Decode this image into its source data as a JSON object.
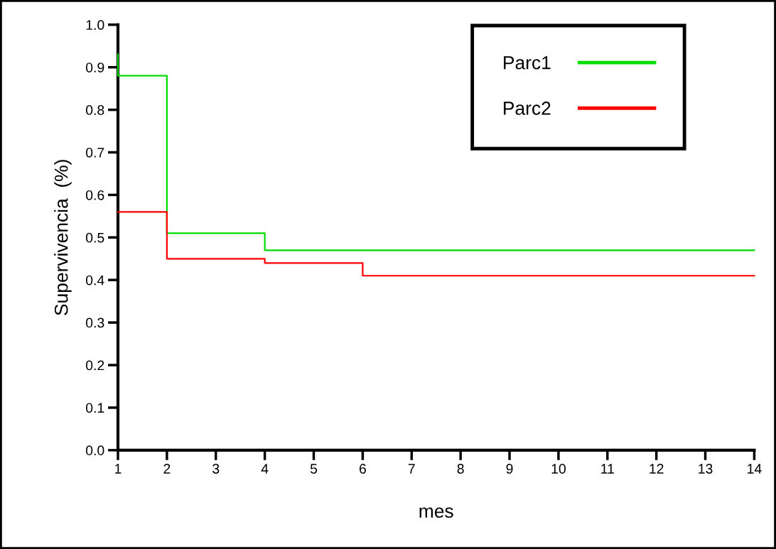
{
  "chart_data": {
    "type": "step",
    "xlabel": "mes",
    "ylabel": "Supervivencia  (%)",
    "series": [
      {
        "name": "Parc1",
        "color": "#00dd00",
        "x": [
          1,
          1,
          2,
          4,
          14
        ],
        "values": [
          0.93,
          0.88,
          0.51,
          0.47,
          0.47
        ]
      },
      {
        "name": "Parc2",
        "color": "#ff0000",
        "x": [
          1,
          2,
          4,
          6,
          14
        ],
        "values": [
          0.56,
          0.45,
          0.44,
          0.41,
          0.41
        ]
      }
    ],
    "xlim": [
      1,
      14
    ],
    "xticks": [
      1,
      2,
      3,
      4,
      5,
      6,
      7,
      8,
      9,
      10,
      11,
      12,
      13,
      14
    ],
    "ylim": [
      0,
      1
    ],
    "yticks": [
      {
        "value": 0,
        "label": "0.0"
      },
      {
        "value": 0.1,
        "label": "0.1"
      },
      {
        "value": 0.2,
        "label": "0.2"
      },
      {
        "value": 0.3,
        "label": "0.3"
      },
      {
        "value": 0.4,
        "label": "0.4"
      },
      {
        "value": 0.5,
        "label": "0.5"
      },
      {
        "value": 0.6,
        "label": "0.6"
      },
      {
        "value": 0.7,
        "label": "0.7"
      },
      {
        "value": 0.8,
        "label": "0.8"
      },
      {
        "value": 0.9,
        "label": "0.9"
      },
      {
        "value": 1,
        "label": "1.0"
      }
    ],
    "grid": false,
    "legend": "top right"
  }
}
